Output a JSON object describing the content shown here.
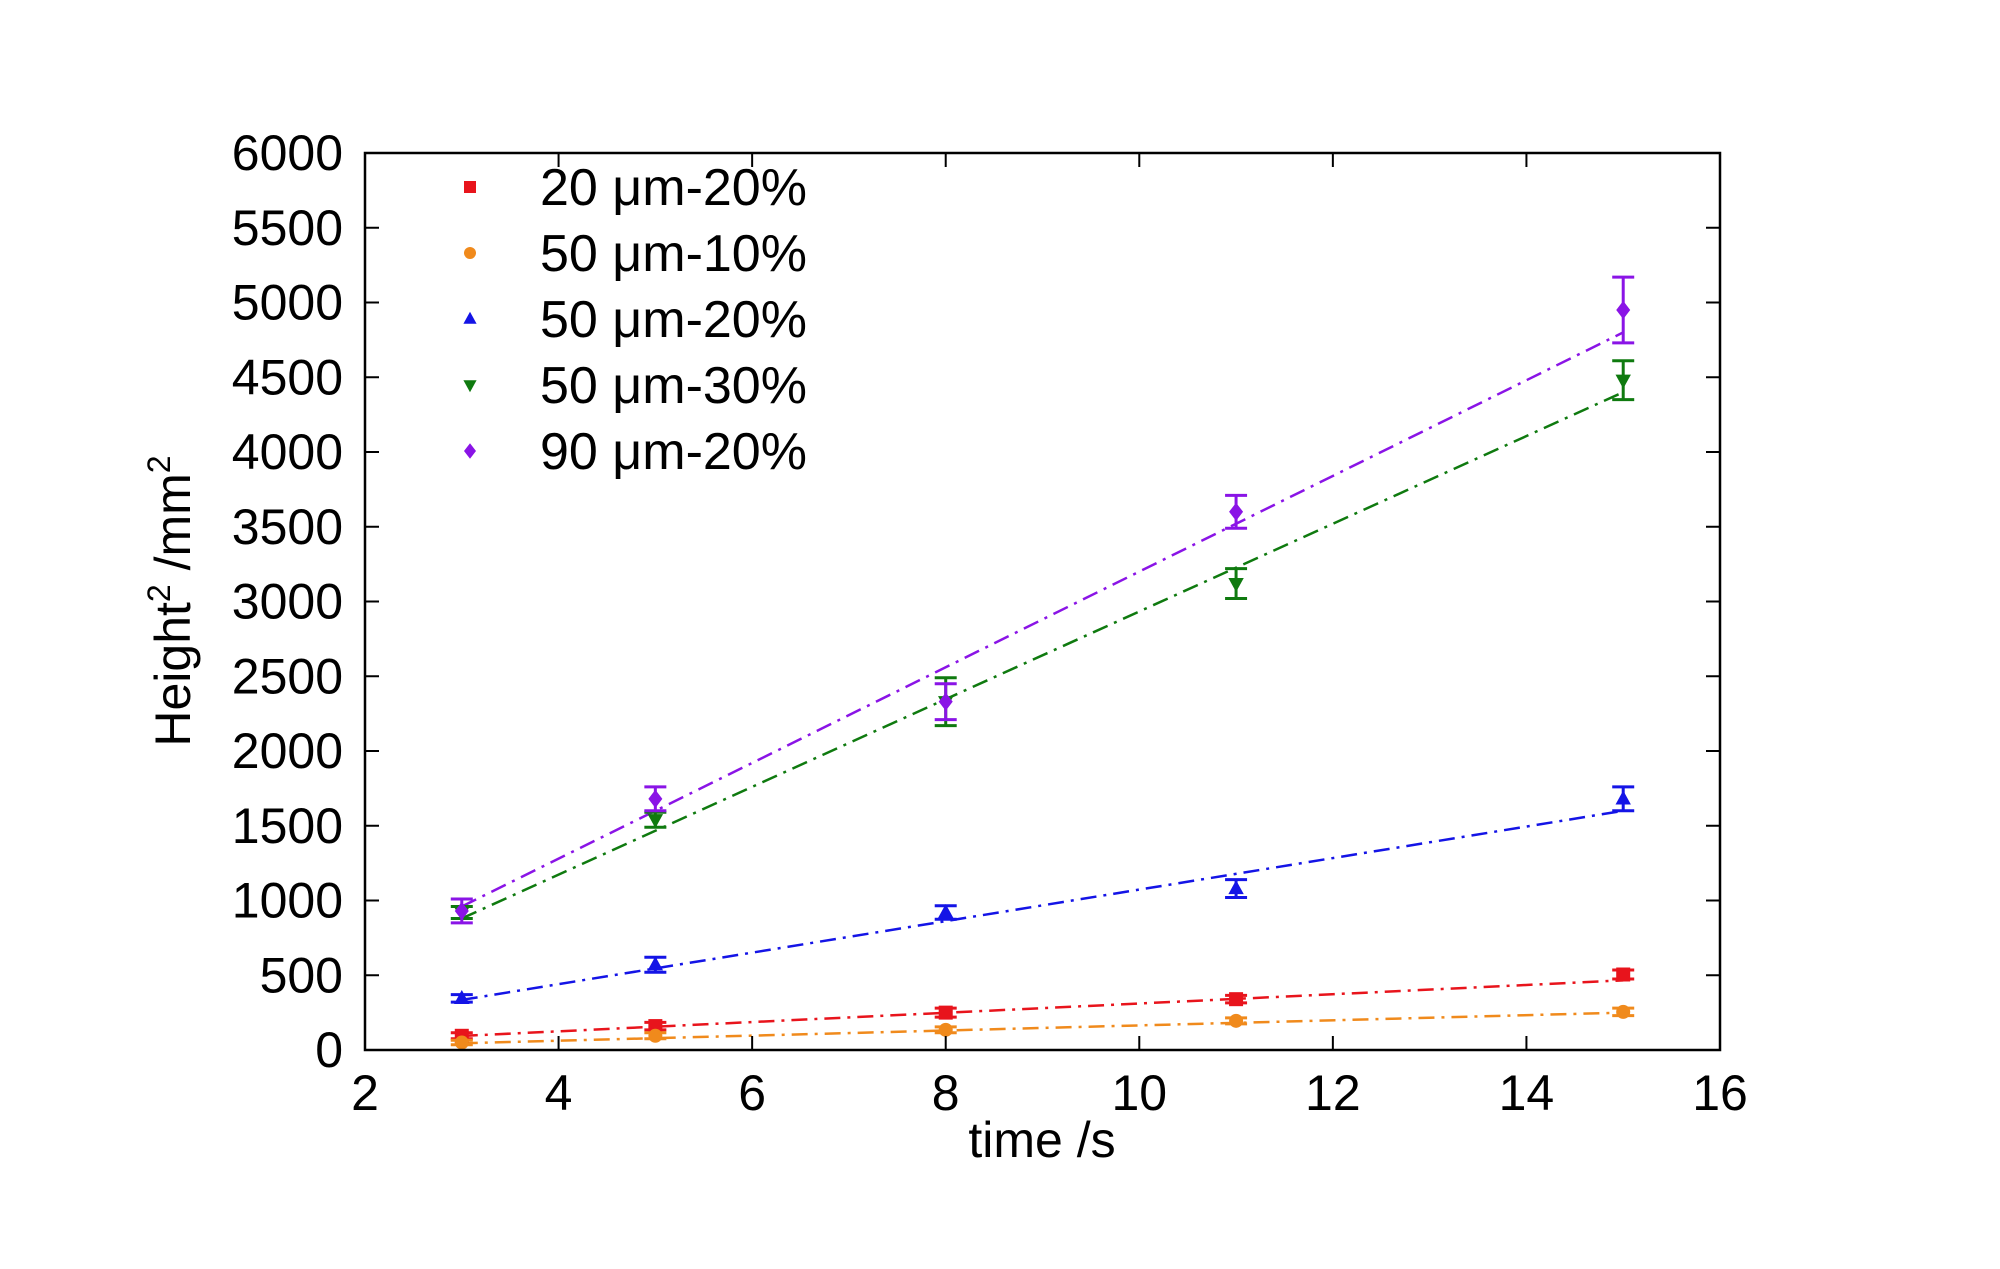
{
  "chart_data": {
    "type": "scatter",
    "xlabel": "time /s",
    "ylabel": "Height",
    "ylabel_sup": "2",
    "ylabel_unit": " /mm",
    "ylabel_unit_sup": "2",
    "xlim": [
      2,
      16
    ],
    "ylim": [
      0,
      6000
    ],
    "xticks": [
      2,
      4,
      6,
      8,
      10,
      12,
      14,
      16
    ],
    "yticks": [
      0,
      500,
      1000,
      1500,
      2000,
      2500,
      3000,
      3500,
      4000,
      4500,
      5000,
      5500,
      6000
    ],
    "grid": false,
    "legend_position": "top-left",
    "series": [
      {
        "name": "20 μm-20%",
        "color": "#e8141c",
        "marker": "square",
        "x": [
          3,
          5,
          8,
          11,
          15
        ],
        "y": [
          95,
          160,
          250,
          340,
          505
        ],
        "err": [
          20,
          25,
          30,
          25,
          30
        ],
        "fit": [
          3,
          94,
          15,
          466
        ]
      },
      {
        "name": "50 μm-10%",
        "color": "#f08a1c",
        "marker": "circle",
        "x": [
          3,
          5,
          8,
          11,
          15
        ],
        "y": [
          50,
          95,
          135,
          195,
          255
        ],
        "err": [
          15,
          20,
          20,
          20,
          25
        ],
        "fit": [
          3,
          45,
          15,
          250
        ]
      },
      {
        "name": "50 μm-20%",
        "color": "#1414e6",
        "marker": "triangle-up",
        "x": [
          3,
          5,
          8,
          11,
          15
        ],
        "y": [
          345,
          570,
          920,
          1080,
          1680
        ],
        "err": [
          25,
          50,
          45,
          60,
          80
        ],
        "fit": [
          3,
          335,
          15,
          1600
        ]
      },
      {
        "name": "50 μm-30%",
        "color": "#0f7a0f",
        "marker": "triangle-down",
        "x": [
          3,
          5,
          8,
          11,
          15
        ],
        "y": [
          920,
          1540,
          2330,
          3120,
          4480
        ],
        "err": [
          40,
          50,
          160,
          100,
          130
        ],
        "fit": [
          3,
          880,
          15,
          4400
        ]
      },
      {
        "name": "90 μm-20%",
        "color": "#8a14e6",
        "marker": "diamond",
        "x": [
          3,
          5,
          8,
          11,
          15
        ],
        "y": [
          930,
          1680,
          2330,
          3600,
          4950
        ],
        "err": [
          80,
          80,
          120,
          110,
          220
        ],
        "fit": [
          3,
          960,
          15,
          4800
        ]
      }
    ]
  }
}
